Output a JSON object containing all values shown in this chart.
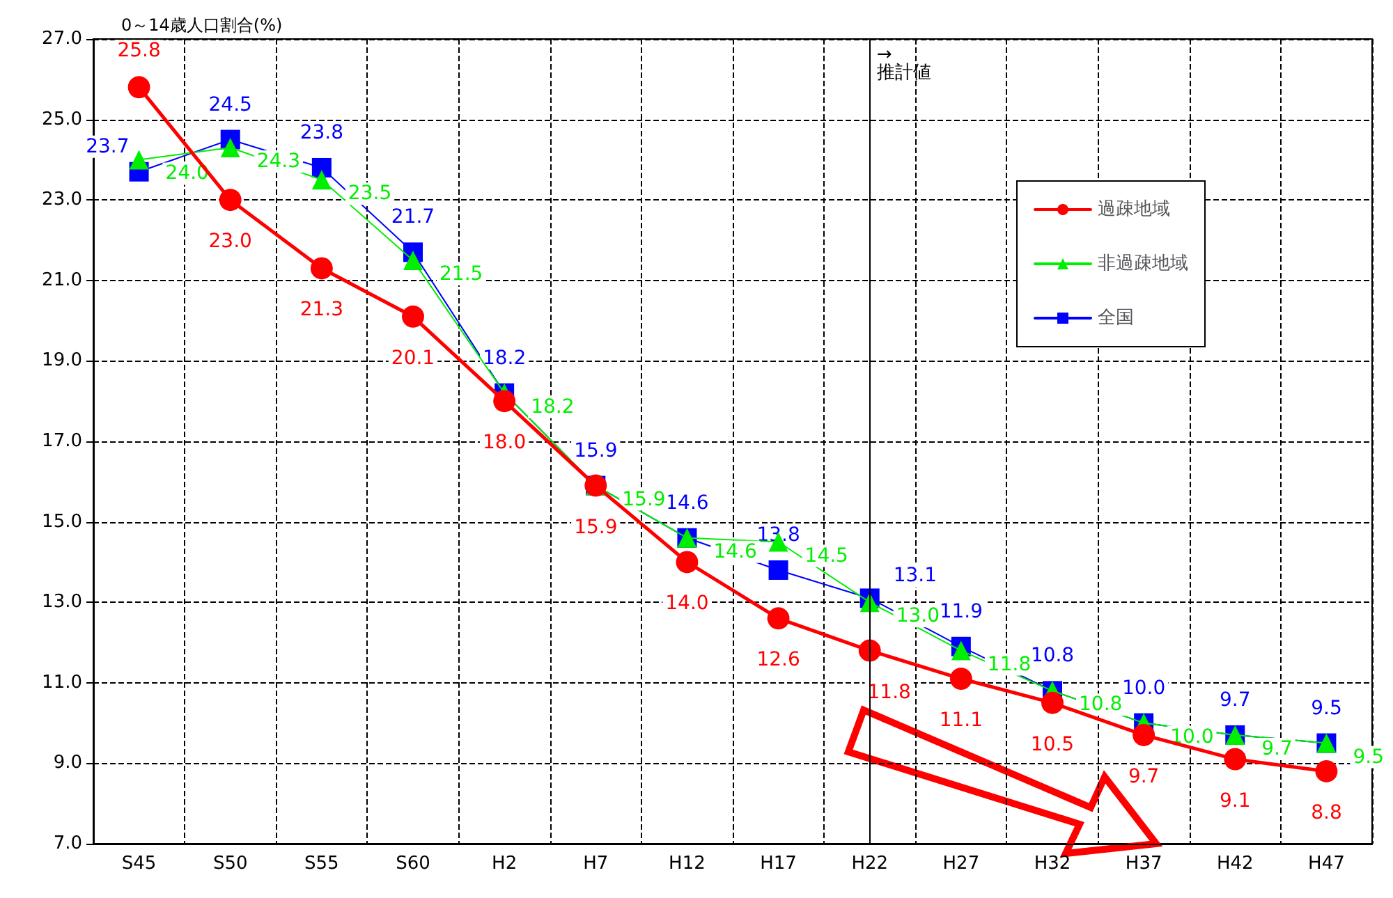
{
  "chart_data": {
    "type": "line",
    "ylabel": "0～14歳人口割合(%)",
    "categories": [
      "S45",
      "S50",
      "S55",
      "S60",
      "H2",
      "H7",
      "H12",
      "H17",
      "H22",
      "H27",
      "H32",
      "H37",
      "H42",
      "H47"
    ],
    "series": [
      {
        "name": "過疎地域",
        "color": "#ff0000",
        "marker": "circle",
        "values": [
          25.8,
          23.0,
          21.3,
          20.1,
          18.0,
          15.9,
          14.0,
          12.6,
          11.8,
          11.1,
          10.5,
          9.7,
          9.1,
          8.8
        ],
        "value_labels": [
          "25.8",
          "23.0",
          "21.3",
          "20.1",
          "18.0",
          "15.9",
          "14.0",
          "12.6",
          "11.8",
          "11.1",
          "10.5",
          "9.7",
          "9.1",
          "8.8"
        ]
      },
      {
        "name": "非過疎地域",
        "color": "#00ee00",
        "marker": "triangle",
        "values": [
          24.0,
          24.3,
          23.5,
          21.5,
          18.2,
          15.9,
          14.6,
          14.5,
          13.0,
          11.8,
          10.8,
          10.0,
          9.7,
          9.5
        ],
        "value_labels": [
          "24.0",
          "24.3",
          "23.5",
          "21.5",
          "18.2",
          "15.9",
          "14.6",
          "14.5",
          "13.0",
          "11.8",
          "10.8",
          "10.0",
          "9.7",
          "9.5"
        ]
      },
      {
        "name": "全国",
        "color": "#0000ff",
        "marker": "square",
        "values": [
          23.7,
          24.5,
          23.8,
          21.7,
          18.2,
          15.9,
          14.6,
          13.8,
          13.1,
          11.9,
          10.8,
          10.0,
          9.7,
          9.5
        ],
        "value_labels": [
          "23.7",
          "24.5",
          "23.8",
          "21.7",
          "18.2",
          "15.9",
          "14.6",
          "13.8",
          "13.1",
          "11.9",
          "10.8",
          "10.0",
          "9.7",
          "9.5"
        ]
      }
    ],
    "ylim": [
      7,
      27
    ],
    "yticks": [
      {
        "value": 7,
        "label": "7.0"
      },
      {
        "value": 9,
        "label": "9.0"
      },
      {
        "value": 11,
        "label": "11.0"
      },
      {
        "value": 13,
        "label": "13.0"
      },
      {
        "value": 15,
        "label": "15.0"
      },
      {
        "value": 17,
        "label": "17.0"
      },
      {
        "value": 19,
        "label": "19.0"
      },
      {
        "value": 21,
        "label": "21.0"
      },
      {
        "value": 23,
        "label": "23.0"
      },
      {
        "value": 25,
        "label": "25.0"
      },
      {
        "value": 27,
        "label": "27.0"
      }
    ],
    "ref_lines": [
      {
        "axis": "x",
        "value": "H22",
        "label": "→\n推計値",
        "color": "#000000"
      }
    ],
    "grid": true,
    "legend": "right",
    "line_style": "solid"
  }
}
